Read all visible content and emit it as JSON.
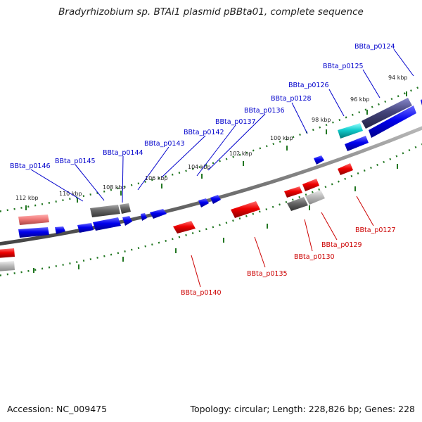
{
  "title": "Bradyrhizobium sp. BTAi1 plasmid pBBta01, complete sequence",
  "footer": {
    "accession": "Accession: NC_009475",
    "summary": "Topology: circular; Length: 228,826 bp; Genes: 228"
  },
  "colors": {
    "forward_label": "#0000cc",
    "reverse_label": "#cc0000",
    "backbone": "#888888",
    "tick_ring": "#227722"
  },
  "kbp_labels": [
    "94 kbp",
    "96 kbp",
    "98 kbp",
    "100 kbp",
    "102 kbp",
    "104 kbp",
    "106 kbp",
    "108 kbp",
    "110 kbp",
    "112 kbp"
  ],
  "gene_labels": {
    "forward": [
      "BBta_p0124",
      "BBta_p0125",
      "BBta_p0126",
      "BBta_p0128",
      "BBta_p0136",
      "BBta_p0137",
      "BBta_p0142",
      "BBta_p0143",
      "BBta_p0144",
      "BBta_p0145",
      "BBta_p0146"
    ],
    "reverse": [
      "BBta_p0127",
      "BBta_p0129",
      "BBta_p0130",
      "BBta_p0135",
      "BBta_p0140"
    ]
  }
}
